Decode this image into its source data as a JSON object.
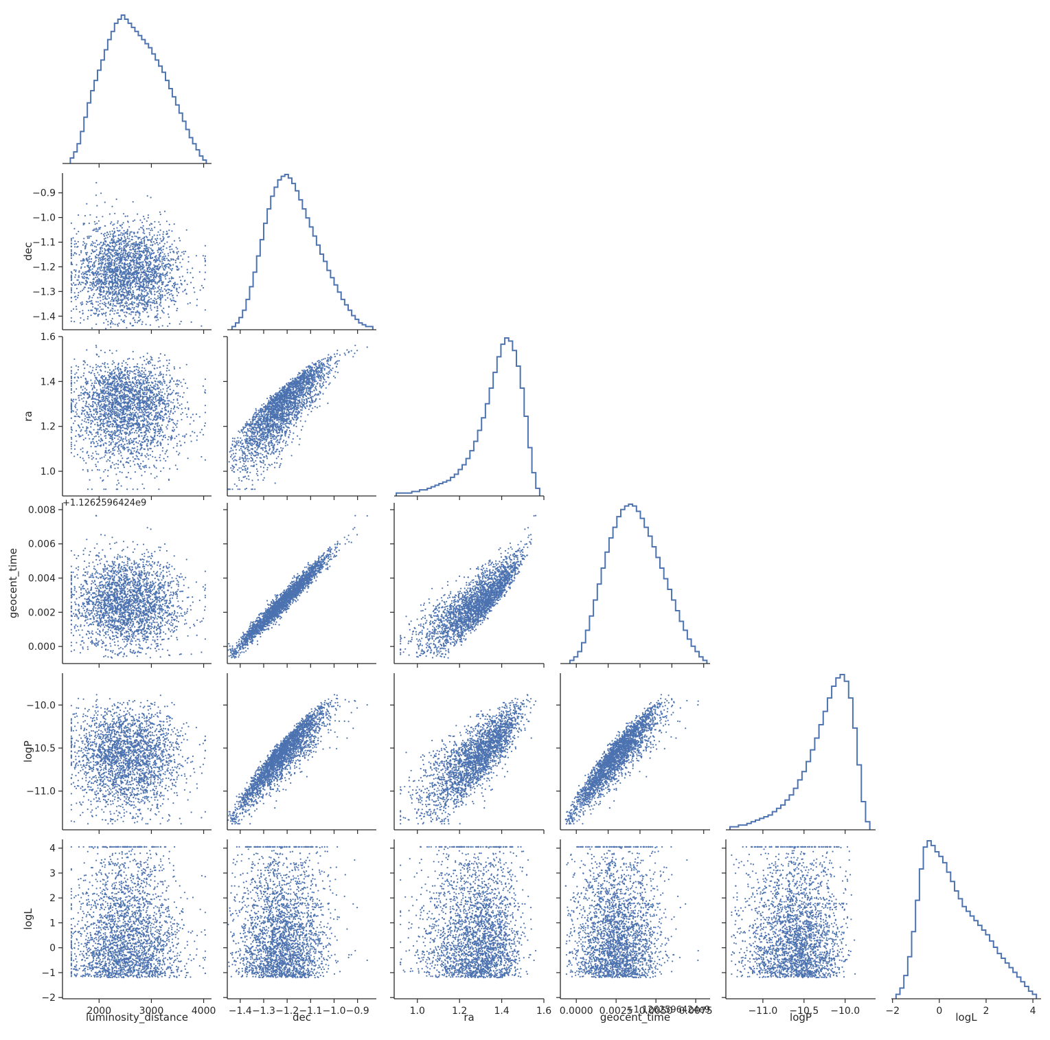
{
  "chart_data": {
    "type": "scatter",
    "layout": "corner-pairplot",
    "colors": {
      "marks": "#4c72b0",
      "axes": "#262626"
    },
    "variables": [
      {
        "name": "luminosity_distance",
        "range": [
          1300,
          4150
        ],
        "ticks": [
          2000,
          3000,
          4000
        ],
        "tick_labels": [
          "2000",
          "3000",
          "4000"
        ]
      },
      {
        "name": "dec",
        "range": [
          -1.455,
          -0.82
        ],
        "ticks": [
          -1.4,
          -1.3,
          -1.2,
          -1.1,
          -1.0,
          -0.9
        ],
        "tick_labels": [
          "−1.4",
          "−1.3",
          "−1.2",
          "−1.1",
          "−1.0",
          "−0.9"
        ]
      },
      {
        "name": "ra",
        "range": [
          0.89,
          1.6
        ],
        "ticks": [
          1.0,
          1.2,
          1.4,
          1.6
        ],
        "tick_labels": [
          "1.0",
          "1.2",
          "1.4",
          "1.6"
        ]
      },
      {
        "name": "geocent_time",
        "range": [
          -0.001,
          0.0084
        ],
        "ticks": [
          0.0,
          0.002,
          0.004,
          0.006,
          0.008
        ],
        "tick_labels": [
          "0.000",
          "0.002",
          "0.004",
          "0.006",
          "0.008"
        ],
        "xtick_labels_bottom": [
          "0.0000",
          "0.0025",
          "0.0050",
          "0.0075"
        ],
        "xticks_bottom": [
          0.0,
          0.0025,
          0.005,
          0.0075
        ],
        "offset_text": "+1.126259642​4e9",
        "offset_text_display": "+1.1262596424e9"
      },
      {
        "name": "logP",
        "range": [
          -11.45,
          -9.63
        ],
        "ticks": [
          -11.0,
          -10.5,
          -10.0
        ],
        "tick_labels": [
          "−11.0",
          "−10.5",
          "−10.0"
        ]
      },
      {
        "name": "logL",
        "range": [
          -2.05,
          4.35
        ],
        "ticks": [
          -2,
          -1,
          0,
          1,
          2,
          3,
          4
        ],
        "tick_labels": [
          "−2",
          "−1",
          "0",
          "1",
          "2",
          "3",
          "4"
        ],
        "xticks_bottom": [
          -2,
          0,
          2,
          4
        ],
        "xtick_labels_bottom": [
          "−2",
          "0",
          "2",
          "4"
        ]
      }
    ],
    "marginals": [
      {
        "name": "luminosity_distance",
        "bins": [
          1450,
          4050
        ],
        "counts": [
          2,
          5,
          9,
          15,
          22,
          29,
          35,
          40,
          45,
          50,
          55,
          60,
          64,
          68,
          70,
          72,
          70,
          68,
          66,
          64,
          62,
          60,
          58,
          56,
          53,
          50,
          47,
          44,
          40,
          36,
          32,
          28,
          24,
          20,
          16,
          12,
          9,
          6,
          3,
          1
        ]
      },
      {
        "name": "dec",
        "bins": [
          -1.435,
          -0.835
        ],
        "counts": [
          1,
          3,
          6,
          10,
          16,
          23,
          31,
          40,
          49,
          58,
          66,
          73,
          78,
          82,
          84,
          85,
          83,
          80,
          76,
          71,
          66,
          61,
          56,
          51,
          46,
          41,
          37,
          32,
          28,
          24,
          20,
          16,
          13,
          10,
          7,
          5,
          3,
          2,
          1,
          1
        ]
      },
      {
        "name": "ra",
        "bins": [
          0.9,
          1.58
        ],
        "counts": [
          1,
          1,
          1,
          1,
          2,
          2,
          3,
          3,
          4,
          5,
          6,
          7,
          8,
          9,
          11,
          13,
          16,
          19,
          23,
          28,
          34,
          41,
          49,
          58,
          68,
          78,
          88,
          96,
          100,
          98,
          92,
          82,
          68,
          50,
          30,
          14,
          4
        ]
      },
      {
        "name": "geocent_time",
        "bins": [
          -0.0004,
          0.0082
        ],
        "counts": [
          1,
          3,
          6,
          11,
          18,
          26,
          35,
          44,
          53,
          62,
          70,
          76,
          82,
          86,
          88,
          89,
          88,
          85,
          81,
          76,
          71,
          65,
          59,
          53,
          47,
          41,
          35,
          29,
          23,
          18,
          13,
          9,
          6,
          3,
          1
        ]
      },
      {
        "name": "logP",
        "bins": [
          -11.4,
          -9.7
        ],
        "counts": [
          1,
          1,
          2,
          2,
          3,
          4,
          5,
          6,
          7,
          8,
          10,
          12,
          14,
          17,
          20,
          24,
          29,
          34,
          40,
          47,
          54,
          62,
          70,
          78,
          85,
          90,
          92,
          88,
          78,
          60,
          38,
          16,
          4
        ]
      },
      {
        "name": "logL",
        "bins": [
          -1.85,
          4.15
        ],
        "counts": [
          2,
          6,
          14,
          26,
          42,
          62,
          82,
          96,
          100,
          97,
          93,
          90,
          86,
          80,
          74,
          68,
          63,
          58,
          55,
          52,
          49,
          46,
          43,
          40,
          36,
          32,
          28,
          25,
          22,
          19,
          16,
          13,
          10,
          7,
          4,
          2
        ]
      }
    ]
  }
}
